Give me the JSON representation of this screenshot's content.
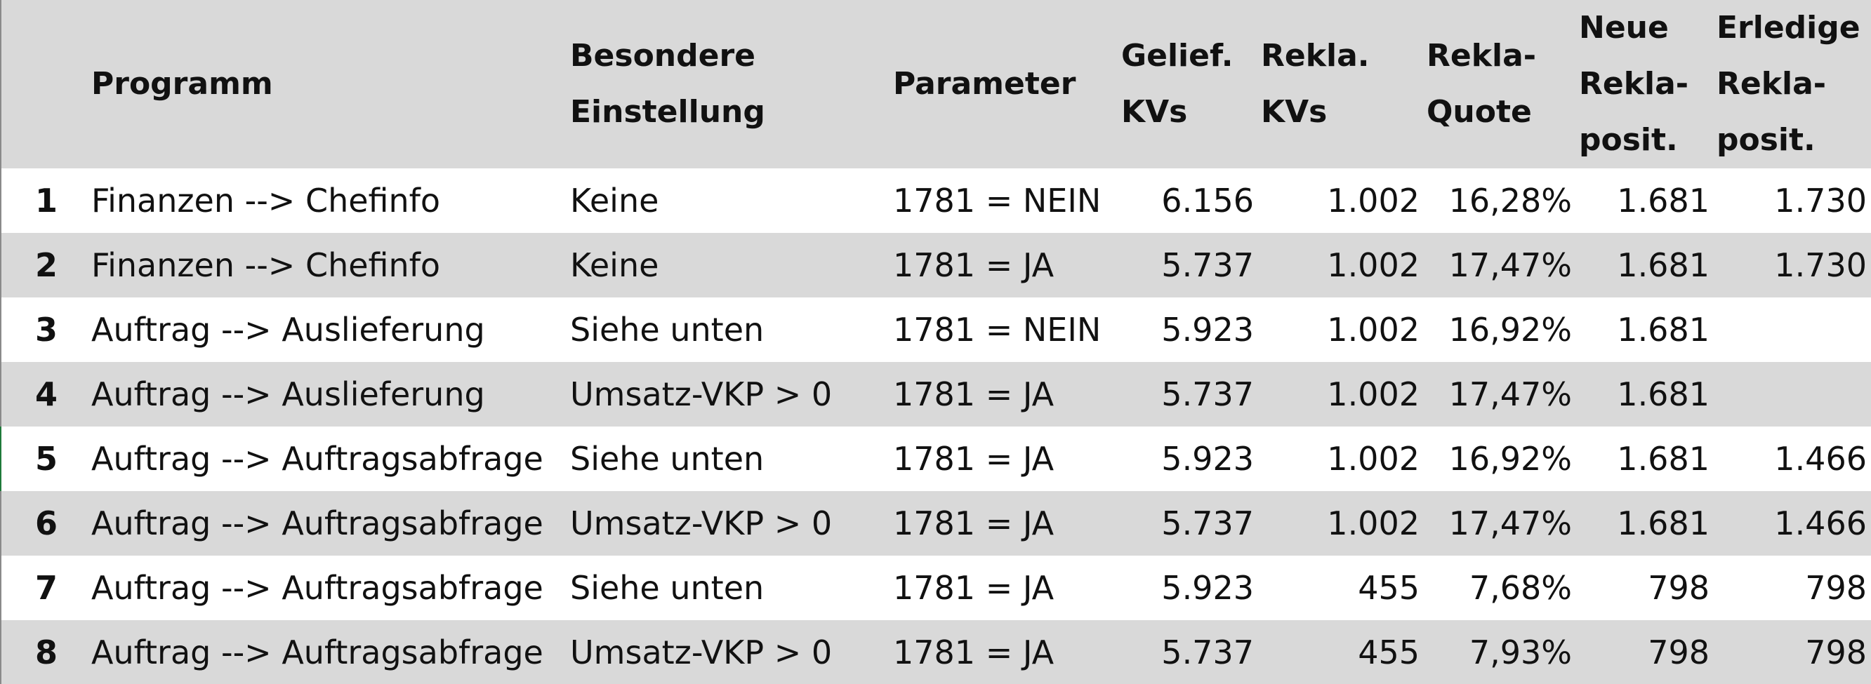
{
  "header": {
    "num": "",
    "programm": [
      "Programm"
    ],
    "besondere": [
      "Besondere",
      "Einstellung"
    ],
    "parameter": [
      "Parameter"
    ],
    "gelief": [
      "Gelief.",
      "KVs"
    ],
    "rekla_kvs": [
      "Rekla.",
      "KVs"
    ],
    "rekla_quote": [
      "Rekla-",
      "Quote"
    ],
    "neue": [
      "Neue",
      "Rekla-",
      "posit."
    ],
    "erledige": [
      "Erledige",
      "Rekla-",
      "posit."
    ]
  },
  "rows": [
    {
      "num": "1",
      "programm": "Finanzen --> Chefinfo",
      "besondere": "Keine",
      "parameter": "1781 = NEIN",
      "gelief": "6.156",
      "rekla_kvs": "1.002",
      "rekla_quote": "16,28%",
      "neue": "1.681",
      "erledige": "1.730"
    },
    {
      "num": "2",
      "programm": "Finanzen --> Chefinfo",
      "besondere": "Keine",
      "parameter": "1781 = JA",
      "gelief": "5.737",
      "rekla_kvs": "1.002",
      "rekla_quote": "17,47%",
      "neue": "1.681",
      "erledige": "1.730"
    },
    {
      "num": "3",
      "programm": "Auftrag --> Auslieferung",
      "besondere": "Siehe unten",
      "parameter": "1781 = NEIN",
      "gelief": "5.923",
      "rekla_kvs": "1.002",
      "rekla_quote": "16,92%",
      "neue": "1.681",
      "erledige": ""
    },
    {
      "num": "4",
      "programm": "Auftrag --> Auslieferung",
      "besondere": "Umsatz-VKP > 0",
      "parameter": "1781 = JA",
      "gelief": "5.737",
      "rekla_kvs": "1.002",
      "rekla_quote": "17,47%",
      "neue": "1.681",
      "erledige": ""
    },
    {
      "num": "5",
      "programm": "Auftrag --> Auftragsabfrage",
      "besondere": "Siehe unten",
      "parameter": "1781 = JA",
      "gelief": "5.923",
      "rekla_kvs": "1.002",
      "rekla_quote": "16,92%",
      "neue": "1.681",
      "erledige": "1.466"
    },
    {
      "num": "6",
      "programm": "Auftrag --> Auftragsabfrage",
      "besondere": "Umsatz-VKP > 0",
      "parameter": "1781 = JA",
      "gelief": "5.737",
      "rekla_kvs": "1.002",
      "rekla_quote": "17,47%",
      "neue": "1.681",
      "erledige": "1.466"
    },
    {
      "num": "7",
      "programm": "Auftrag --> Auftragsabfrage",
      "besondere": "Siehe unten",
      "parameter": "1781 = JA",
      "gelief": "5.923",
      "rekla_kvs": "455",
      "rekla_quote": "7,68%",
      "neue": "798",
      "erledige": "798"
    },
    {
      "num": "8",
      "programm": "Auftrag --> Auftragsabfrage",
      "besondere": "Umsatz-VKP > 0",
      "parameter": "1781 = JA",
      "gelief": "5.737",
      "rekla_kvs": "455",
      "rekla_quote": "7,93%",
      "neue": "798",
      "erledige": "798"
    }
  ],
  "colors": {
    "band": "#d9d9d9",
    "white": "#ffffff",
    "text": "#111111",
    "left_border": "#8a8a8a",
    "left_accent": "#1f7a3a"
  }
}
